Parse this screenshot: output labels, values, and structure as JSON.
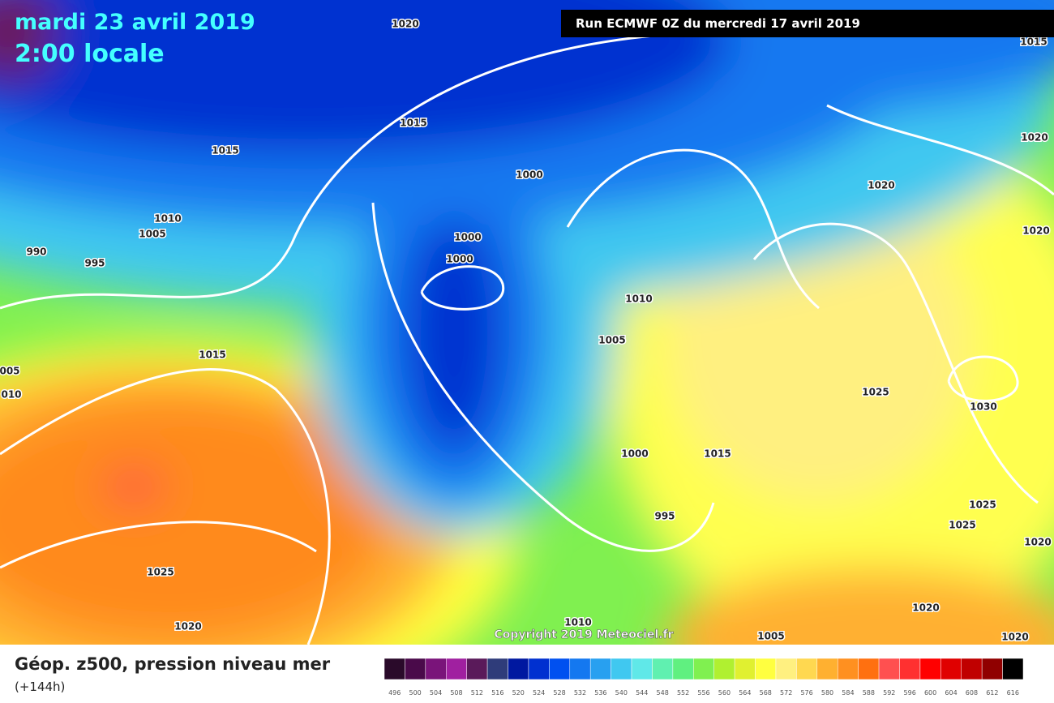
{
  "header": {
    "date": "mardi 23 avril 2019",
    "time": "2:00 locale",
    "run": "Run ECMWF 0Z du mercredi 17 avril 2019"
  },
  "map": {
    "isobar_labels": [
      "1020",
      "1015",
      "1015",
      "1015",
      "1020",
      "1000",
      "1020",
      "1010",
      "1005",
      "990",
      "995",
      "1000",
      "1000",
      "1020",
      "1010",
      "1005",
      "1015",
      "005",
      "010",
      "1025",
      "1030",
      "1000",
      "1015",
      "995",
      "1025",
      "1025",
      "1020",
      "1025",
      "1020",
      "1010",
      "1020",
      "1005",
      "1020"
    ],
    "copyright": "Copyright 2019 Meteociel.fr"
  },
  "legend": {
    "title": "Géop. z500, pression niveau mer",
    "lead": "(+144h)",
    "scale": [
      496,
      500,
      504,
      508,
      512,
      516,
      520,
      524,
      528,
      532,
      536,
      540,
      544,
      548,
      552,
      556,
      560,
      564,
      568,
      572,
      576,
      580,
      584,
      588,
      592,
      596,
      600,
      604,
      608,
      612,
      616
    ]
  }
}
